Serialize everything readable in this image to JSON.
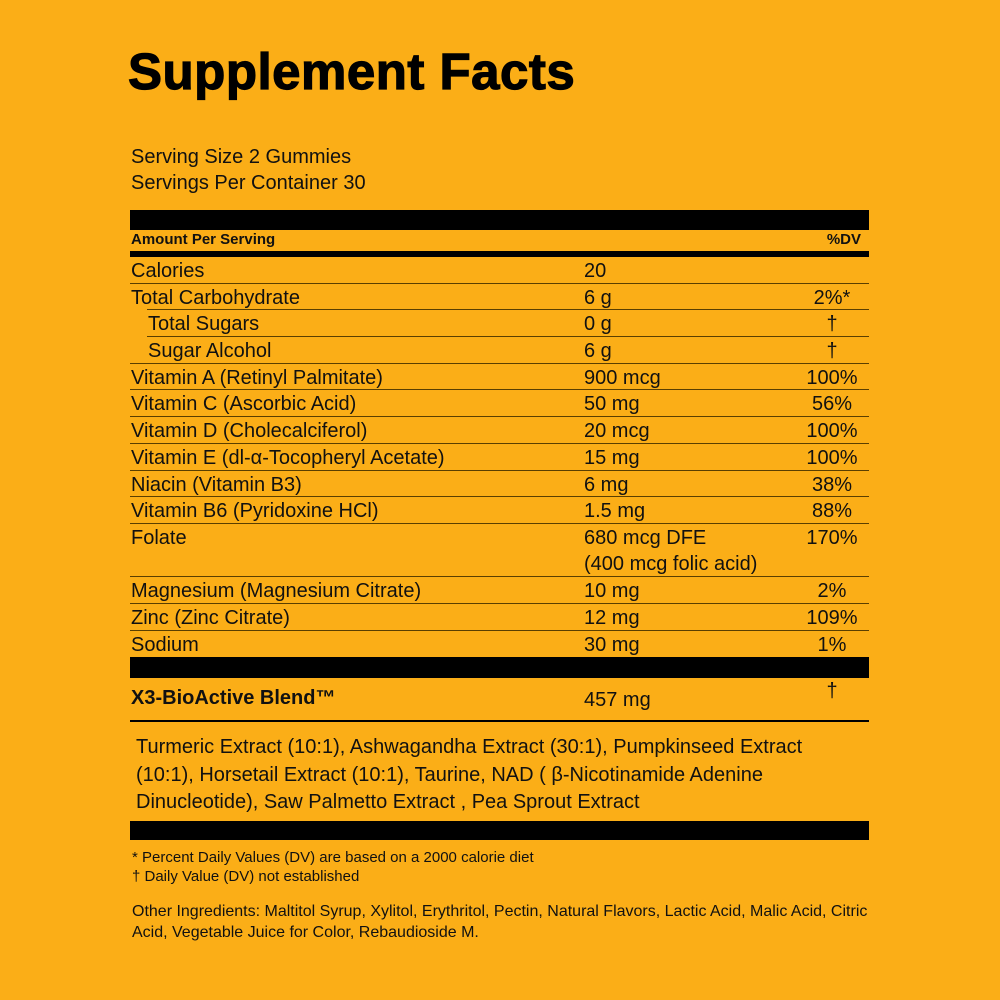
{
  "title": "Supplement Facts",
  "serving_size": "Serving Size 2 Gummies",
  "servings_per_container": "Servings Per Container 30",
  "header": {
    "amount": "Amount Per Serving",
    "dv": "%DV"
  },
  "rows": [
    {
      "name": "Calories",
      "amount": "20",
      "dv": ""
    },
    {
      "name": "Total Carbohydrate",
      "amount": "6 g",
      "dv": "2%*"
    },
    {
      "name": "Total Sugars",
      "amount": "0 g",
      "dv": "†"
    },
    {
      "name": "Sugar Alcohol",
      "amount": "6 g",
      "dv": "†"
    },
    {
      "name": "Vitamin A (Retinyl Palmitate)",
      "amount": "900 mcg",
      "dv": "100%"
    },
    {
      "name": "Vitamin C (Ascorbic Acid)",
      "amount": "50 mg",
      "dv": "56%"
    },
    {
      "name": "Vitamin D (Cholecalciferol)",
      "amount": "20 mcg",
      "dv": "100%"
    },
    {
      "name": "Vitamin E (dl-α-Tocopheryl Acetate)",
      "amount": "15 mg",
      "dv": "100%"
    },
    {
      "name": "Niacin (Vitamin B3)",
      "amount": "6 mg",
      "dv": "38%"
    },
    {
      "name": "Vitamin B6 (Pyridoxine HCl)",
      "amount": "1.5 mg",
      "dv": "88%"
    },
    {
      "name": "Folate",
      "amount": "680 mcg DFE",
      "amount2": "(400 mcg folic acid)",
      "dv": "170%"
    },
    {
      "name": "Magnesium (Magnesium Citrate)",
      "amount": "10 mg",
      "dv": "2%"
    },
    {
      "name": "Zinc (Zinc Citrate)",
      "amount": "12 mg",
      "dv": "109%"
    },
    {
      "name": "Sodium",
      "amount": "30 mg",
      "dv": "1%"
    }
  ],
  "blend": {
    "name": "X3-BioActive Blend™",
    "amount": "457 mg",
    "dv": "†"
  },
  "blend_ingredients": "Turmeric Extract (10:1), Ashwagandha Extract (30:1), Pumpkinseed Extract (10:1), Horsetail Extract (10:1), Taurine, NAD ( β-Nicotinamide Adenine Dinucleotide), Saw Palmetto Extract , Pea Sprout Extract",
  "footnotes": [
    "* Percent Daily Values (DV) are based on a 2000 calorie diet",
    "† Daily Value (DV) not established"
  ],
  "other_ingredients": "Other Ingredients: Maltitol Syrup, Xylitol, Erythritol, Pectin, Natural Flavors, Lactic Acid, Malic Acid, Citric Acid, Vegetable Juice for Color, Rebaudioside M.",
  "colors": {
    "background": "#FBAE17",
    "ink": "#000000"
  }
}
